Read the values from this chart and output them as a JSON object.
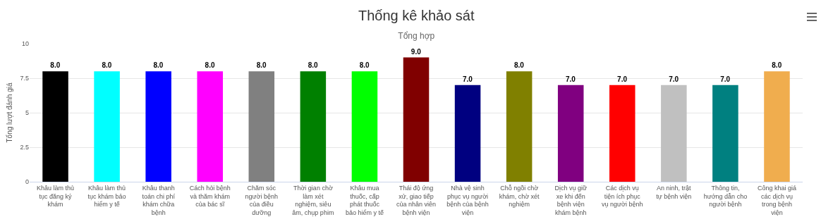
{
  "chart_data": {
    "type": "bar",
    "title": "Thống kê khảo sát",
    "subtitle": "Tổng hợp",
    "ylabel": "Tổng lượt đánh giá",
    "categories": [
      "Khâu làm thủ tục đăng ký khám",
      "Khâu làm thủ tục khám bảo hiểm y tế",
      "Khâu thanh toán chi phí khám chữa bệnh",
      "Cách hỏi bệnh và thăm khám của bác sĩ",
      "Chăm sóc người bệnh của điều dưỡng",
      "Thời gian chờ làm xét nghiệm, siêu âm, chụp phim",
      "Khâu mua thuốc, cấp phát thuốc bảo hiểm y tế",
      "Thái độ ứng xử, giao tiếp của nhân viên bệnh viện",
      "Nhà vệ sinh phục vụ người bệnh của bệnh viện",
      "Chỗ ngồi chờ khám, chờ xét nghiệm",
      "Dịch vụ giữ xe khi đến bệnh viện khám bệnh",
      "Các dịch vụ tiện ích phục vụ người bệnh",
      "An ninh, trật tự bệnh viện",
      "Thông tin, hướng dẫn cho người bệnh",
      "Công khai giá các dịch vụ trong bệnh viện"
    ],
    "values": [
      8,
      8,
      8,
      8,
      8,
      8,
      8,
      9,
      7,
      8,
      7,
      7,
      7,
      7,
      8
    ],
    "value_labels": [
      "8.0",
      "8.0",
      "8.0",
      "8.0",
      "8.0",
      "8.0",
      "8.0",
      "9.0",
      "7.0",
      "8.0",
      "7.0",
      "7.0",
      "7.0",
      "7.0",
      "8.0"
    ],
    "colors": [
      "#000000",
      "#00ffff",
      "#0000ff",
      "#ff00ff",
      "#808080",
      "#008000",
      "#00ff00",
      "#800000",
      "#000080",
      "#808000",
      "#800080",
      "#ff0000",
      "#c0c0c0",
      "#008080",
      "#f0ad4e"
    ],
    "ylim": [
      0,
      10
    ],
    "yticks": [
      0,
      2.5,
      5,
      7.5,
      10
    ],
    "grid": "y"
  }
}
